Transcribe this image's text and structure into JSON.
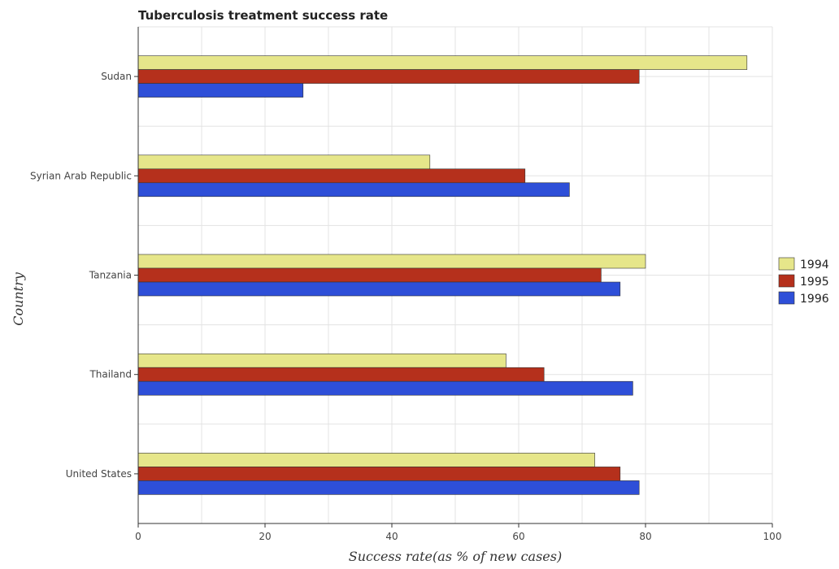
{
  "chart_data": {
    "type": "bar",
    "orientation": "horizontal",
    "title": "Tuberculosis treatment success rate",
    "xlabel": "Success rate(as % of new cases)",
    "ylabel": "Country",
    "xlim": [
      0,
      100
    ],
    "x_ticks": [
      0,
      20,
      40,
      60,
      80,
      100
    ],
    "grid": true,
    "legend_position": "right",
    "categories": [
      "Sudan",
      "Syrian Arab Republic",
      "Tanzania",
      "Thailand",
      "United States"
    ],
    "series": [
      {
        "name": "1994",
        "color": "#e6e68a",
        "values": [
          96,
          46,
          80,
          58,
          72
        ]
      },
      {
        "name": "1995",
        "color": "#b5301c",
        "values": [
          79,
          61,
          73,
          64,
          76
        ]
      },
      {
        "name": "1996",
        "color": "#2e4fd8",
        "values": [
          26,
          68,
          76,
          78,
          79
        ]
      }
    ]
  }
}
